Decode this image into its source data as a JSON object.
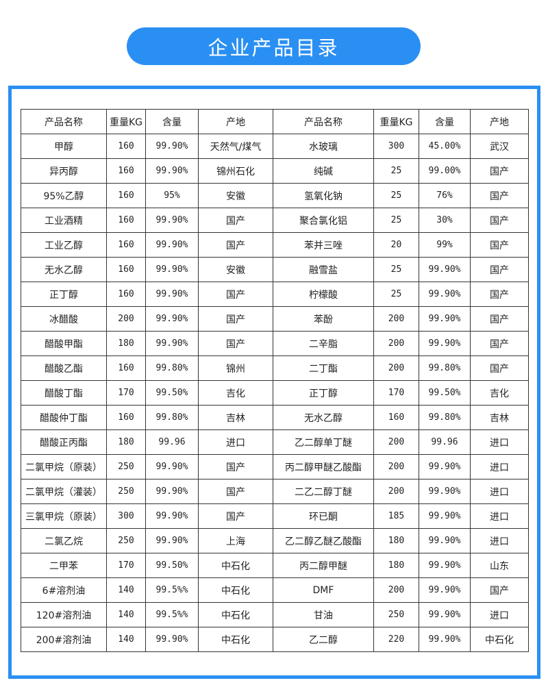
{
  "title": "企业产品目录",
  "colors": {
    "accent": "#2a8ff2",
    "border": "#333333"
  },
  "table": {
    "headers": [
      "产品名称",
      "重量KG",
      "含量",
      "产地",
      "产品名称",
      "重量KG",
      "含量",
      "产地"
    ],
    "rows": [
      [
        "甲醇",
        "160",
        "99.90%",
        "天然气/煤气",
        "水玻璃",
        "300",
        "45.00%",
        "武汉"
      ],
      [
        "异丙醇",
        "160",
        "99.90%",
        "锦州石化",
        "纯碱",
        "25",
        "99.00%",
        "国产"
      ],
      [
        "95%乙醇",
        "160",
        "95%",
        "安徽",
        "氢氧化钠",
        "25",
        "76%",
        "国产"
      ],
      [
        "工业酒精",
        "160",
        "99.90%",
        "国产",
        "聚合氯化铝",
        "25",
        "30%",
        "国产"
      ],
      [
        "工业乙醇",
        "160",
        "99.90%",
        "国产",
        "苯并三唑",
        "20",
        "99%",
        "国产"
      ],
      [
        "无水乙醇",
        "160",
        "99.90%",
        "安徽",
        "融雪盐",
        "25",
        "99.90%",
        "国产"
      ],
      [
        "正丁醇",
        "160",
        "99.90%",
        "国产",
        "柠檬酸",
        "25",
        "99.90%",
        "国产"
      ],
      [
        "冰醋酸",
        "200",
        "99.90%",
        "国产",
        "苯酚",
        "200",
        "99.90%",
        "国产"
      ],
      [
        "醋酸甲酯",
        "180",
        "99.90%",
        "国产",
        "二辛脂",
        "200",
        "99.90%",
        "国产"
      ],
      [
        "醋酸乙酯",
        "160",
        "99.80%",
        "锦州",
        "二丁酯",
        "200",
        "99.80%",
        "国产"
      ],
      [
        "醋酸丁酯",
        "170",
        "99.50%",
        "吉化",
        "正丁醇",
        "170",
        "99.50%",
        "吉化"
      ],
      [
        "醋酸仲丁酯",
        "160",
        "99.80%",
        "吉林",
        "无水乙醇",
        "160",
        "99.80%",
        "吉林"
      ],
      [
        "醋酸正丙酯",
        "180",
        "99.96",
        "进口",
        "乙二醇单丁醚",
        "200",
        "99.96",
        "进口"
      ],
      [
        "二氯甲烷（原装）",
        "250",
        "99.90%",
        "国产",
        "丙二醇甲醚乙酸酯",
        "200",
        "99.90%",
        "进口"
      ],
      [
        "二氯甲烷（灌装）",
        "250",
        "99.90%",
        "国产",
        "二乙二醇丁醚",
        "200",
        "99.90%",
        "进口"
      ],
      [
        "三氯甲烷（原装）",
        "300",
        "99.90%",
        "国产",
        "环已酮",
        "185",
        "99.90%",
        "进口"
      ],
      [
        "二氯乙烷",
        "250",
        "99.90%",
        "上海",
        "乙二醇乙醚乙酸酯",
        "180",
        "99.90%",
        "进口"
      ],
      [
        "二甲苯",
        "170",
        "99.50%",
        "中石化",
        "丙二醇甲醚",
        "180",
        "99.90%",
        "山东"
      ],
      [
        "6#溶剂油",
        "140",
        "99.5%%",
        "中石化",
        "DMF",
        "200",
        "99.90%",
        "国产"
      ],
      [
        "120#溶剂油",
        "140",
        "99.5%%",
        "中石化",
        "甘油",
        "250",
        "99.90%",
        "进口"
      ],
      [
        "200#溶剂油",
        "140",
        "99.90%",
        "中石化",
        "乙二醇",
        "220",
        "99.90%",
        "中石化"
      ]
    ]
  }
}
